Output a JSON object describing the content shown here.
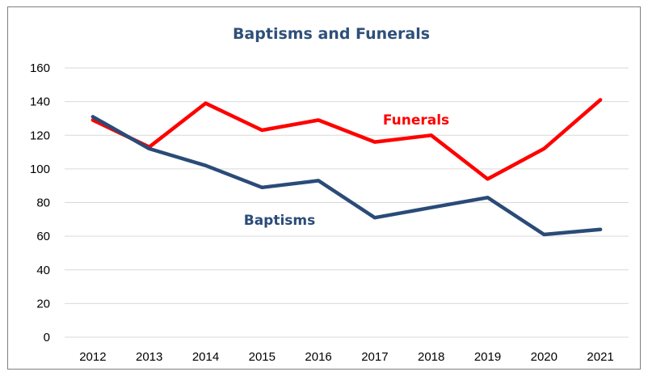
{
  "chart_data": {
    "type": "line",
    "title": "Baptisms and Funerals",
    "xlabel": "",
    "ylabel": "",
    "categories": [
      "2012",
      "2013",
      "2014",
      "2015",
      "2016",
      "2017",
      "2018",
      "2019",
      "2020",
      "2021"
    ],
    "ylim": [
      0,
      160
    ],
    "yticks": [
      0,
      20,
      40,
      60,
      80,
      100,
      120,
      140,
      160
    ],
    "grid": true,
    "legend": "none",
    "series": [
      {
        "name": "Funerals",
        "color": "#ff0000",
        "values": [
          129,
          113,
          139,
          123,
          129,
          116,
          120,
          94,
          112,
          141
        ]
      },
      {
        "name": "Baptisms",
        "color": "#2a4b78",
        "values": [
          131,
          112,
          102,
          89,
          93,
          71,
          77,
          83,
          61,
          64
        ]
      }
    ],
    "title_color": "#2e4f7a",
    "grid_color": "#d9d9d9"
  }
}
